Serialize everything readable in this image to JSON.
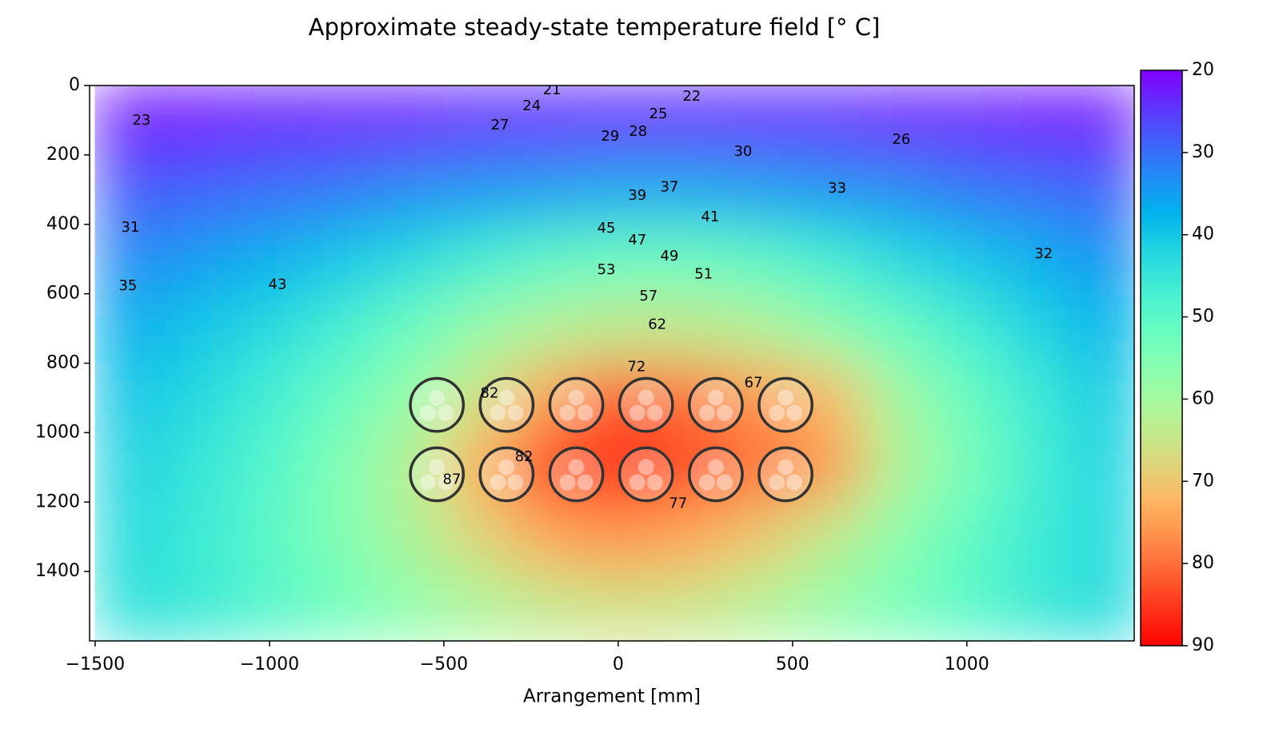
{
  "chart_data": {
    "type": "heatmap",
    "title": "Approximate steady-state temperature field [° C]",
    "x_label": "Arrangement [mm]",
    "xlim": [
      -1516,
      1480
    ],
    "ylim": [
      1600,
      0
    ],
    "xticks": [
      {
        "value": -1500,
        "label": "−1500"
      },
      {
        "value": -1000,
        "label": "−1000"
      },
      {
        "value": -500,
        "label": "−500"
      },
      0,
      500,
      1000
    ],
    "yticks": [
      0,
      200,
      400,
      600,
      800,
      1000,
      1200,
      1400
    ],
    "colormap": "rainbow",
    "colorbar": {
      "lim": [
        20,
        90
      ],
      "ticks": [
        20,
        30,
        40,
        50,
        60,
        70,
        80,
        90
      ]
    },
    "x": [
      -1400,
      -1200,
      -1000,
      -800,
      -600,
      -400,
      -200,
      0,
      200,
      400,
      600,
      800,
      1000,
      1200,
      1400
    ],
    "y": [
      100,
      300,
      500,
      700,
      900,
      1100,
      1300,
      1500
    ],
    "z": [
      [
        22,
        22,
        23,
        23,
        23,
        24,
        24,
        24,
        24,
        24,
        24,
        23,
        23,
        22,
        22
      ],
      [
        28,
        29,
        30,
        31,
        33,
        34,
        35,
        36,
        36,
        35,
        34,
        33,
        31,
        30,
        29
      ],
      [
        33,
        35,
        37,
        40,
        43,
        47,
        50,
        52,
        52,
        50,
        47,
        43,
        40,
        37,
        34
      ],
      [
        37,
        40,
        43,
        47,
        52,
        58,
        62,
        64,
        64,
        62,
        57,
        52,
        47,
        42,
        38
      ],
      [
        40,
        43,
        47,
        52,
        58,
        66,
        75,
        82,
        80,
        76,
        72,
        60,
        52,
        46,
        41
      ],
      [
        42,
        45,
        49,
        55,
        62,
        73,
        85,
        87,
        84,
        80,
        76,
        62,
        54,
        47,
        42
      ],
      [
        43,
        46,
        50,
        55,
        61,
        68,
        74,
        76,
        74,
        70,
        64,
        57,
        51,
        46,
        43
      ],
      [
        44,
        46,
        49,
        53,
        57,
        61,
        64,
        66,
        65,
        62,
        58,
        54,
        50,
        46,
        43
      ]
    ],
    "cables": {
      "x": [
        -520,
        -320,
        -120,
        80,
        280,
        480,
        -520,
        -320,
        -120,
        80,
        280,
        480
      ],
      "y": [
        920,
        920,
        920,
        920,
        920,
        920,
        1120,
        1120,
        1120,
        1120,
        1120,
        1120
      ]
    },
    "contour_labels": [
      {
        "value": 21,
        "x": -190,
        "y": 14
      },
      {
        "value": 22,
        "x": 211,
        "y": 32
      },
      {
        "value": 24,
        "x": -248,
        "y": 60
      },
      {
        "value": 25,
        "x": 115,
        "y": 83
      },
      {
        "value": 23,
        "x": -1367,
        "y": 101
      },
      {
        "value": 27,
        "x": -339,
        "y": 115
      },
      {
        "value": 29,
        "x": -23,
        "y": 147
      },
      {
        "value": 28,
        "x": 57,
        "y": 134
      },
      {
        "value": 26,
        "x": 812,
        "y": 157
      },
      {
        "value": 30,
        "x": 358,
        "y": 191
      },
      {
        "value": 37,
        "x": 147,
        "y": 293
      },
      {
        "value": 39,
        "x": 55,
        "y": 318
      },
      {
        "value": 33,
        "x": 628,
        "y": 297
      },
      {
        "value": 41,
        "x": 264,
        "y": 380
      },
      {
        "value": 31,
        "x": -1399,
        "y": 410
      },
      {
        "value": 45,
        "x": -34,
        "y": 412
      },
      {
        "value": 47,
        "x": 55,
        "y": 447
      },
      {
        "value": 49,
        "x": 147,
        "y": 493
      },
      {
        "value": 32,
        "x": 1220,
        "y": 486
      },
      {
        "value": 51,
        "x": 245,
        "y": 544
      },
      {
        "value": 53,
        "x": -34,
        "y": 532
      },
      {
        "value": 43,
        "x": -977,
        "y": 574
      },
      {
        "value": 35,
        "x": -1406,
        "y": 578
      },
      {
        "value": 57,
        "x": 87,
        "y": 608
      },
      {
        "value": 62,
        "x": 112,
        "y": 689
      },
      {
        "value": 72,
        "x": 53,
        "y": 811
      },
      {
        "value": 67,
        "x": 388,
        "y": 857
      },
      {
        "value": 82,
        "x": -369,
        "y": 887
      },
      {
        "value": 87,
        "x": -477,
        "y": 1136
      },
      {
        "value": 82,
        "x": -270,
        "y": 1070
      },
      {
        "value": 77,
        "x": 172,
        "y": 1205
      }
    ]
  }
}
